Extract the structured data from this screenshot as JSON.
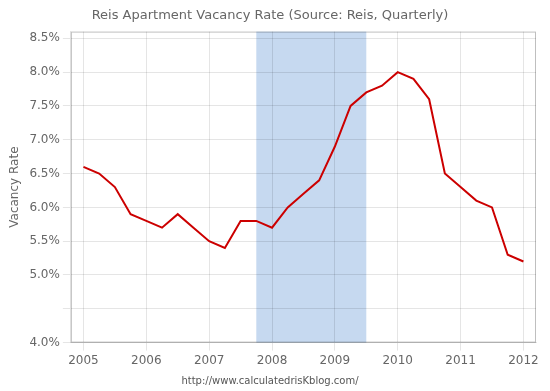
{
  "chart_data": {
    "type": "line",
    "title": "Reis Apartment Vacancy Rate (Source: Reis, Quarterly)",
    "ylabel": "Vacancy Rate",
    "watermark": "http://www.calculatedrisKblog.com/",
    "recession": {
      "start": 2007.75,
      "end": 2009.5,
      "color": "#c6d9f0"
    },
    "x": [
      2005.0,
      2005.25,
      2005.5,
      2005.75,
      2006.0,
      2006.25,
      2006.5,
      2006.75,
      2007.0,
      2007.25,
      2007.5,
      2007.75,
      2008.0,
      2008.25,
      2008.5,
      2008.75,
      2009.0,
      2009.25,
      2009.5,
      2009.75,
      2010.0,
      2010.25,
      2010.5,
      2010.75,
      2011.0,
      2011.25,
      2011.5,
      2011.75,
      2012.0
    ],
    "values": [
      0.066,
      0.065,
      0.063,
      0.059,
      0.058,
      0.057,
      0.059,
      0.057,
      0.055,
      0.054,
      0.058,
      0.058,
      0.057,
      0.06,
      0.062,
      0.064,
      0.069,
      0.075,
      0.077,
      0.078,
      0.08,
      0.079,
      0.076,
      0.065,
      0.063,
      0.061,
      0.06,
      0.053,
      0.052
    ],
    "color": "#cc0000",
    "xlim": [
      2004.8,
      2012.2
    ],
    "xticks": [
      2005,
      2006,
      2007,
      2008,
      2009,
      2010,
      2011,
      2012
    ],
    "ylim": [
      0.04,
      0.086
    ],
    "yticks": [
      {
        "value": 0.04,
        "label": "4.0%"
      },
      {
        "value": 0.045,
        "label": null
      },
      {
        "value": 0.05,
        "label": "5.0%"
      },
      {
        "value": 0.055,
        "label": "5.5%"
      },
      {
        "value": 0.06,
        "label": "6.0%"
      },
      {
        "value": 0.065,
        "label": "6.5%"
      },
      {
        "value": 0.07,
        "label": "7.0%"
      },
      {
        "value": 0.075,
        "label": "7.5%"
      },
      {
        "value": 0.08,
        "label": "8.0%"
      },
      {
        "value": 0.085,
        "label": "8.5%"
      }
    ],
    "grid": true
  }
}
